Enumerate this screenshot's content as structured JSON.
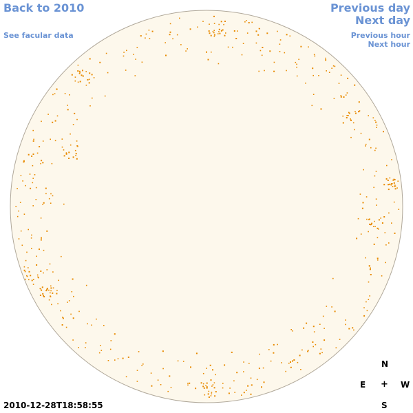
{
  "nav": {
    "back_label": "Back to 2010",
    "facular_label": "See facular data",
    "prev_day_label": "Previous day",
    "next_day_label": "Next day",
    "prev_hour_label": "Previous hour",
    "next_hour_label": "Next hour"
  },
  "timestamp": "2010-12-28T18:58:55",
  "compass": {
    "north": "N",
    "east": "E",
    "center": "+",
    "west": "W",
    "south": "S"
  },
  "colors": {
    "disk_fill": "#fdf8ec",
    "disk_outline": "#b0a89a",
    "facula": "#e88a00",
    "link": "#6a93d4"
  }
}
